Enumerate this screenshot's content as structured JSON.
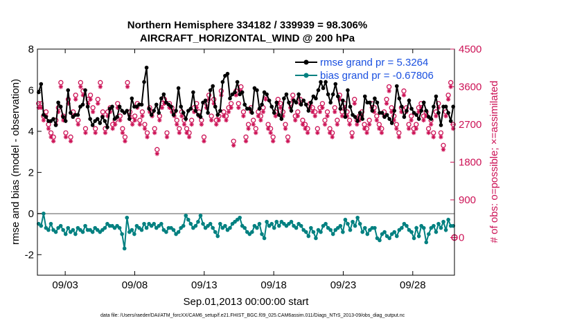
{
  "chart_data": {
    "type": "line",
    "title_line1": "Northern Hemisphere 334182 / 339939 = 98.306%",
    "title_line2": "AIRCRAFT_HORIZONTAL_WIND @ 200 hPa",
    "xlabel": "Sep.01,2013 00:00:00 start",
    "ylabel_left": "rmse and bias (model - observation)",
    "ylabel_right": "# of obs: o=possible; ×=assimilated",
    "footnote": "data file: /Users/raeder/DAI/ATM_forcXX/CAM6_setup/f.e21.FHIST_BGC.f09_025.CAM6assim.011/Diags_NTrS_2013-09/obs_diag_output.nc",
    "x_range_days": [
      1,
      31
    ],
    "x_ticks": [
      {
        "day": 3,
        "label": "09/03"
      },
      {
        "day": 8,
        "label": "09/08"
      },
      {
        "day": 13,
        "label": "09/13"
      },
      {
        "day": 18,
        "label": "09/18"
      },
      {
        "day": 23,
        "label": "09/23"
      },
      {
        "day": 28,
        "label": "09/28"
      }
    ],
    "ylim_left": [
      -3,
      8
    ],
    "yticks_left": [
      "-2",
      "0",
      "2",
      "4",
      "6",
      "8"
    ],
    "ylim_right": [
      -900,
      4500
    ],
    "yticks_right": [
      "0",
      "900",
      "1800",
      "2700",
      "3600",
      "4500"
    ],
    "legend_position": "top-right",
    "colors": {
      "rmse": "#000000",
      "bias": "#008080",
      "obs": "#cc1155",
      "zero_line": "#aaaaaa",
      "legend_text": "#1a50e0"
    },
    "series": [
      {
        "name": "rmse grand pr = 5.3264",
        "axis": "left",
        "style": "black-filled-circles-line",
        "values": [
          5.9,
          6.3,
          4.8,
          4.7,
          4.5,
          4.5,
          4.6,
          4.3,
          5.4,
          5.2,
          4.7,
          4.5,
          6.0,
          4.9,
          4.7,
          4.8,
          4.8,
          5.2,
          5.3,
          6.0,
          5.2,
          4.6,
          4.3,
          4.5,
          4.6,
          4.4,
          4.7,
          4.5,
          4.2,
          5.1,
          5.2,
          4.6,
          4.7,
          5.2,
          5.0,
          4.9,
          5.0,
          4.6,
          5.6,
          5.2,
          5.2,
          5.3,
          5.3,
          6.4,
          7.1,
          5.1,
          4.8,
          5.0,
          5.3,
          4.9,
          5.6,
          5.8,
          5.4,
          5.3,
          5.2,
          4.8,
          5.0,
          6.1,
          5.2,
          4.9,
          4.6,
          5.0,
          5.1,
          5.9,
          5.0,
          4.8,
          4.7,
          5.4,
          5.5,
          4.9,
          6.0,
          6.2,
          5.2,
          4.8,
          5.0,
          6.4,
          6.7,
          6.8,
          5.6,
          5.8,
          5.9,
          6.4,
          5.8,
          5.9,
          5.3,
          5.1,
          5.1,
          4.9,
          6.1,
          6.0,
          5.1,
          5.3,
          5.9,
          5.8,
          5.5,
          5.2,
          4.9,
          5.4,
          4.8,
          4.6,
          5.6,
          5.8,
          5.4,
          5.0,
          5.5,
          5.4,
          5.8,
          5.3,
          5.5,
          5.3,
          5.0,
          5.4,
          5.7,
          5.6,
          6.0,
          6.4,
          6.1,
          6.4,
          5.8,
          5.4,
          5.8,
          6.3,
          5.7,
          5.1,
          5.5,
          4.7,
          6.0,
          5.2,
          4.8,
          4.7,
          4.5,
          4.9,
          4.6,
          5.7,
          5.4,
          5.4,
          5.0,
          5.6,
          5.4,
          4.9,
          4.9,
          4.7,
          4.8,
          4.6,
          4.4,
          5.0,
          6.2,
          5.6,
          5.2,
          4.7,
          5.0,
          5.5,
          5.1,
          4.9,
          4.8,
          4.6,
          5.0,
          5.4,
          5.0,
          4.7,
          4.6,
          5.2,
          5.7,
          4.9,
          4.3,
          5.2,
          5.2,
          4.9,
          4.5,
          5.2
        ]
      },
      {
        "name": "bias grand pr = -0.67806",
        "axis": "left",
        "style": "teal-filled-circles-line",
        "values": [
          -0.5,
          -0.6,
          0.0,
          -0.7,
          -0.8,
          -0.5,
          -0.8,
          -0.9,
          -0.7,
          -0.6,
          -0.8,
          -1.0,
          -0.7,
          -0.9,
          -0.8,
          -1.0,
          -0.7,
          -0.8,
          -0.9,
          -0.6,
          -0.8,
          -0.8,
          -0.9,
          -0.7,
          -0.8,
          -0.9,
          -0.8,
          -0.7,
          -0.5,
          -0.6,
          -0.6,
          -0.7,
          -0.6,
          -0.7,
          -1.0,
          -1.7,
          -0.2,
          -0.9,
          -0.8,
          -1.0,
          -0.6,
          -0.7,
          -0.8,
          -0.5,
          -0.7,
          -0.5,
          -0.6,
          -0.5,
          -0.7,
          -0.6,
          -0.5,
          -0.8,
          -0.9,
          -0.7,
          -0.7,
          -0.8,
          -1.0,
          -0.9,
          -0.7,
          -0.6,
          -0.1,
          -0.3,
          -0.5,
          -0.7,
          -0.6,
          -0.4,
          -0.1,
          -0.5,
          -0.7,
          -0.6,
          -0.5,
          -0.7,
          -0.9,
          -1.1,
          -0.5,
          -0.7,
          -0.6,
          -0.8,
          -0.7,
          -0.5,
          -0.4,
          -0.3,
          -0.2,
          -0.6,
          -0.7,
          -0.9,
          -1.0,
          -0.9,
          -0.6,
          -0.7,
          -0.5,
          -1.0,
          -1.2,
          -0.4,
          -0.6,
          -0.5,
          -0.7,
          -0.4,
          -0.6,
          -0.4,
          -0.5,
          -0.6,
          -0.5,
          -0.4,
          -0.6,
          -0.7,
          -0.5,
          -0.6,
          -0.8,
          -0.9,
          -1.1,
          -0.7,
          -0.9,
          -1.2,
          -0.8,
          -0.9,
          -0.6,
          -0.5,
          -0.7,
          -0.8,
          -1.0,
          -0.8,
          -0.7,
          -0.6,
          -0.9,
          -0.3,
          -0.5,
          -0.8,
          -0.4,
          -0.6,
          -0.2,
          -0.5,
          -0.9,
          -0.7,
          -1.0,
          -0.8,
          -0.7,
          -0.7,
          -1.2,
          -1.3,
          -1.0,
          -0.9,
          -1.1,
          -1.2,
          -1.0,
          -0.9,
          -1.1,
          -0.8,
          -0.7,
          -0.5,
          -0.6,
          -0.8,
          -0.9,
          -1.2,
          -0.7,
          -1.1,
          -0.6,
          -0.7,
          -1.4,
          -1.0,
          -0.7,
          -0.6,
          -0.9,
          -0.5,
          -0.7,
          -0.4,
          -0.8,
          -0.3,
          -0.6,
          -0.6
        ]
      },
      {
        "name": "obs possible",
        "axis": "right",
        "style": "open-circles",
        "values": [
          3200,
          3200,
          2900,
          3000,
          2700,
          2500,
          2400,
          2800,
          3100,
          3700,
          2900,
          2500,
          3300,
          2400,
          3000,
          3400,
          2800,
          3700,
          3500,
          2600,
          3300,
          3400,
          3100,
          2600,
          3300,
          3700,
          3000,
          2600,
          3000,
          3100,
          2700,
          2800,
          3200,
          2900,
          2600,
          2400,
          3700,
          3000,
          2800,
          2900,
          3200,
          2800,
          3000,
          2700,
          2500,
          3100,
          3000,
          2600,
          2100,
          2900,
          3200,
          3300,
          2500,
          3200,
          3100,
          3000,
          2800,
          2600,
          3000,
          2800,
          2600,
          2500,
          2800,
          3100,
          3200,
          3000,
          2800,
          2400,
          3200,
          3400,
          2900,
          3300,
          2800,
          2900,
          3500,
          3000,
          2900,
          3100,
          3200,
          2300,
          3500,
          3200,
          3600,
          3000,
          2400,
          2700,
          3100,
          2800,
          2600,
          3000,
          2900,
          3100,
          3400,
          2700,
          2600,
          2400,
          3000,
          3300,
          3200,
          3000,
          2700,
          2400,
          3200,
          3400,
          2900,
          3000,
          3300,
          2800,
          2700,
          2600,
          3200,
          3100,
          3000,
          2600,
          3100,
          3200,
          2800,
          3000,
          2600,
          2500,
          3100,
          2800,
          3400,
          3000,
          3200,
          3000,
          2800,
          2500,
          3300,
          2800,
          2900,
          3000,
          2700,
          2600,
          2800,
          3200,
          3100,
          2900,
          2700,
          2600,
          3000,
          3300,
          3600,
          3100,
          2900,
          2700,
          2500,
          3100,
          3500,
          3100,
          2700,
          2900,
          2600,
          2700,
          3100,
          3200,
          2900,
          3000,
          2600,
          2800,
          2500,
          3000,
          3200,
          2500,
          2200,
          3000,
          3400,
          3700,
          2700
        ]
      },
      {
        "name": "obs assimilated",
        "axis": "right",
        "style": "asterisks",
        "values": [
          3100,
          3100,
          2800,
          2900,
          2600,
          2400,
          2300,
          2700,
          3000,
          3600,
          2800,
          2400,
          3200,
          2300,
          2900,
          3300,
          2700,
          3600,
          3400,
          2500,
          3200,
          3300,
          3000,
          2500,
          3200,
          3600,
          2900,
          2500,
          2900,
          3000,
          2600,
          2700,
          3100,
          2800,
          2500,
          2300,
          3600,
          2900,
          2700,
          2800,
          3100,
          2700,
          2900,
          2600,
          2400,
          3000,
          2900,
          2500,
          2000,
          2800,
          3100,
          3200,
          2400,
          3100,
          3000,
          2900,
          2700,
          2500,
          2900,
          2700,
          2500,
          2400,
          2700,
          3000,
          3100,
          2900,
          2700,
          2300,
          3100,
          3300,
          2800,
          3200,
          2700,
          2800,
          3400,
          2900,
          2800,
          3000,
          3100,
          2200,
          3400,
          3100,
          3500,
          2900,
          2300,
          2600,
          3000,
          2700,
          2500,
          2900,
          2800,
          3000,
          3300,
          2600,
          2500,
          2300,
          2900,
          3200,
          3100,
          2900,
          2600,
          2300,
          3100,
          3300,
          2800,
          2900,
          3200,
          2700,
          2600,
          2500,
          3100,
          3000,
          2900,
          2500,
          3000,
          3100,
          2700,
          2900,
          2500,
          2400,
          3000,
          2700,
          3300,
          2900,
          3100,
          2900,
          2700,
          2400,
          3200,
          2700,
          2800,
          2900,
          2600,
          2500,
          2700,
          3100,
          3000,
          2800,
          2600,
          2500,
          2900,
          3200,
          3500,
          3000,
          2800,
          2600,
          2400,
          3000,
          3400,
          3000,
          2600,
          2800,
          2500,
          2600,
          3000,
          3100,
          2800,
          2900,
          2500,
          2700,
          2400,
          2900,
          3100,
          2400,
          2100,
          2900,
          3300,
          3600,
          2600
        ]
      },
      {
        "name": "obs total marker",
        "axis": "right",
        "style": "outside-right-marker",
        "values": [
          0
        ]
      }
    ]
  }
}
